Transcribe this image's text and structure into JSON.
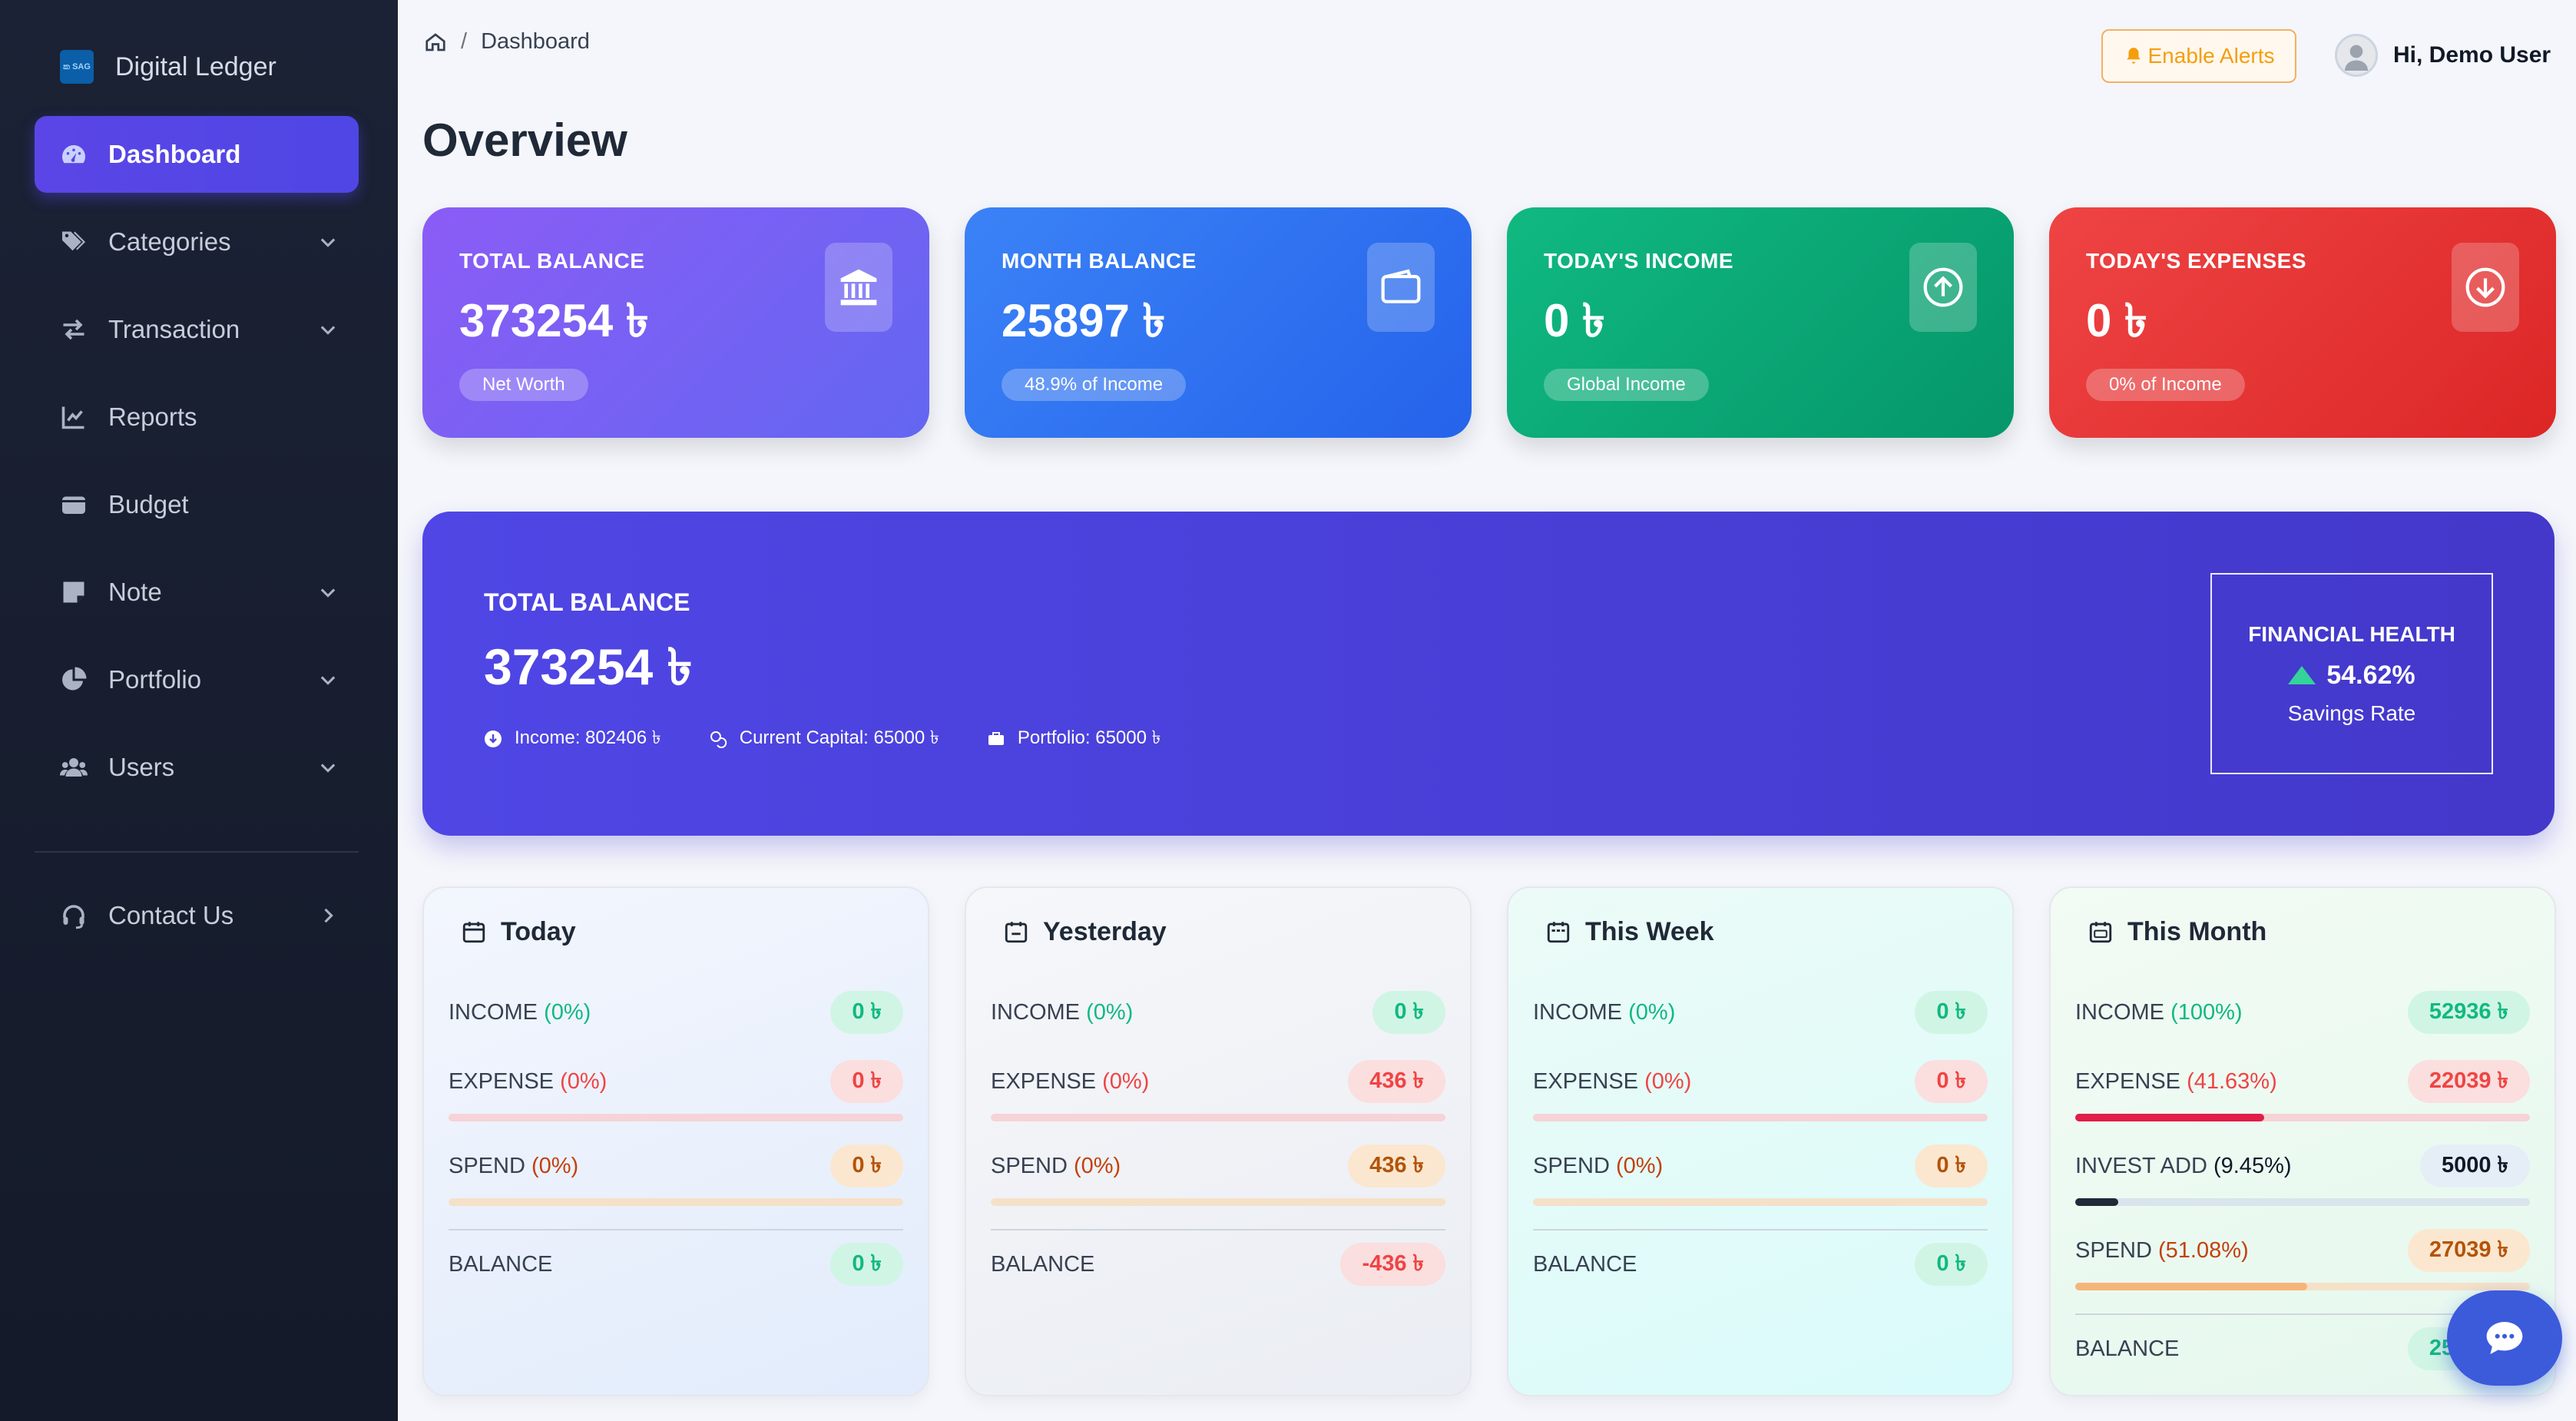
{
  "app": {
    "brand_name": "Digital Ledger",
    "brand_logo_text": "ක SAG"
  },
  "sidebar": {
    "items": [
      {
        "label": "Dashboard",
        "icon": "gauge-icon",
        "active": true,
        "has_chevron": false
      },
      {
        "label": "Categories",
        "icon": "tags-icon",
        "active": false,
        "has_chevron": true
      },
      {
        "label": "Transaction",
        "icon": "exchange-icon",
        "active": false,
        "has_chevron": true
      },
      {
        "label": "Reports",
        "icon": "chart-line-icon",
        "active": false,
        "has_chevron": false
      },
      {
        "label": "Budget",
        "icon": "wallet-icon",
        "active": false,
        "has_chevron": false
      },
      {
        "label": "Note",
        "icon": "note-icon",
        "active": false,
        "has_chevron": true
      },
      {
        "label": "Portfolio",
        "icon": "pie-chart-icon",
        "active": false,
        "has_chevron": true
      },
      {
        "label": "Users",
        "icon": "users-icon",
        "active": false,
        "has_chevron": true
      }
    ],
    "contact": {
      "label": "Contact Us",
      "icon": "headset-icon"
    }
  },
  "header": {
    "breadcrumb": "Dashboard",
    "alerts_label": "Enable Alerts",
    "user_greeting": "Hi, Demo User",
    "page_title": "Overview"
  },
  "stats": [
    {
      "label": "TOTAL BALANCE",
      "value": "373254 ৳",
      "pill": "Net Worth",
      "icon": "bank-icon"
    },
    {
      "label": "MONTH BALANCE",
      "value": "25897 ৳",
      "pill": "48.9% of Income",
      "icon": "wallet-icon"
    },
    {
      "label": "TODAY'S INCOME",
      "value": "0 ৳",
      "pill": "Global Income",
      "icon": "arrow-up-circle-icon"
    },
    {
      "label": "TODAY'S EXPENSES",
      "value": "0 ৳",
      "pill": "0% of Income",
      "icon": "arrow-down-circle-icon"
    }
  ],
  "banner": {
    "label": "TOTAL BALANCE",
    "value": "373254 ৳",
    "income": "Income: 802406 ৳",
    "capital": "Current Capital: 65000 ৳",
    "portfolio": "Portfolio: 65000 ৳",
    "health_title": "FINANCIAL HEALTH",
    "health_rate": "54.62%",
    "health_sub": "Savings Rate"
  },
  "periods": [
    {
      "title": "Today",
      "income_pct": "(0%)",
      "income_value": "0 ৳",
      "expense_pct": "(0%)",
      "expense_value": "0 ৳",
      "expense_fill": 0,
      "spend_pct": "(0%)",
      "spend_value": "0 ৳",
      "spend_fill": 0,
      "balance_value": "0 ৳",
      "balance_tone": "green"
    },
    {
      "title": "Yesterday",
      "income_pct": "(0%)",
      "income_value": "0 ৳",
      "expense_pct": "(0%)",
      "expense_value": "436 ৳",
      "expense_fill": 0,
      "spend_pct": "(0%)",
      "spend_value": "436 ৳",
      "spend_fill": 0,
      "balance_value": "-436 ৳",
      "balance_tone": "red"
    },
    {
      "title": "This Week",
      "income_pct": "(0%)",
      "income_value": "0 ৳",
      "expense_pct": "(0%)",
      "expense_value": "0 ৳",
      "expense_fill": 0,
      "spend_pct": "(0%)",
      "spend_value": "0 ৳",
      "spend_fill": 0,
      "balance_value": "0 ৳",
      "balance_tone": "green"
    },
    {
      "title": "This Month",
      "income_pct": "(100%)",
      "income_value": "52936 ৳",
      "expense_pct": "(41.63%)",
      "expense_value": "22039 ৳",
      "expense_fill": 0.4163,
      "invest_label": "INVEST ADD",
      "invest_pct": "(9.45%)",
      "invest_value": "5000 ৳",
      "invest_fill": 0.0945,
      "spend_pct": "(51.08%)",
      "spend_value": "27039 ৳",
      "spend_fill": 0.5108,
      "balance_value": "25897 ৳",
      "balance_tone": "green"
    }
  ],
  "labels": {
    "income": "INCOME",
    "expense": "EXPENSE",
    "spend": "SPEND",
    "balance": "BALANCE"
  }
}
